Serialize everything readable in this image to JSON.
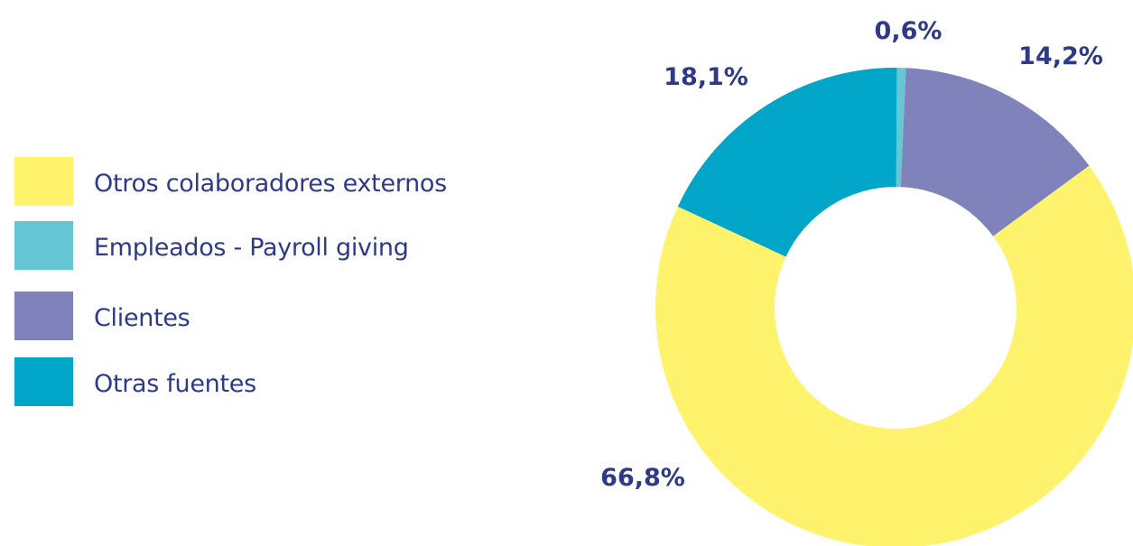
{
  "chart_data": {
    "type": "pie",
    "categories": [
      "Otros colaboradores externos",
      "Empleados - Payroll giving",
      "Clientes",
      "Otras fuentes"
    ],
    "values": [
      66.8,
      0.6,
      14.2,
      18.1
    ],
    "data_labels": [
      "66,8%",
      "0,6%",
      "14,2%",
      "18,1%"
    ],
    "colors": [
      "#fff36e",
      "#67c6d3",
      "#8083bb",
      "#00a5c8"
    ],
    "donut": true,
    "legend_position": "left",
    "title": "",
    "xlabel": "",
    "ylabel": ""
  }
}
